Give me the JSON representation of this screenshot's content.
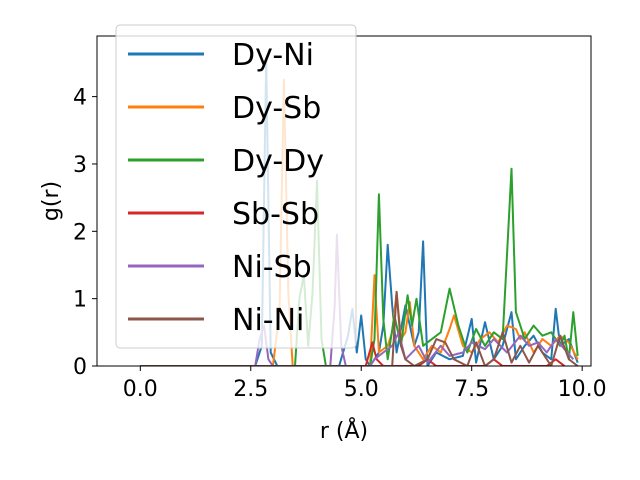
{
  "chart_data": {
    "type": "line",
    "title": "",
    "xlabel": "r (Å)",
    "ylabel": "g(r)",
    "xlim": [
      -0.98,
      10.2
    ],
    "ylim": [
      0,
      4.9
    ],
    "xticks": [
      0.0,
      2.5,
      5.0,
      7.5,
      10.0
    ],
    "xtick_labels": [
      "0.0",
      "2.5",
      "5.0",
      "7.5",
      "10.0"
    ],
    "yticks": [
      0,
      1,
      2,
      3,
      4
    ],
    "ytick_labels": [
      "0",
      "1",
      "2",
      "3",
      "4"
    ],
    "grid": false,
    "legend_position": "upper-left",
    "series": [
      {
        "name": "Dy-Ni",
        "color": "#1f77b4",
        "points": [
          [
            0,
            0
          ],
          [
            2.6,
            0
          ],
          [
            2.75,
            0.3
          ],
          [
            2.85,
            4.55
          ],
          [
            2.95,
            0.2
          ],
          [
            3.1,
            0
          ],
          [
            4.5,
            0
          ],
          [
            4.7,
            0.45
          ],
          [
            4.8,
            0.85
          ],
          [
            4.9,
            0.2
          ],
          [
            5.0,
            0.75
          ],
          [
            5.1,
            0.1
          ],
          [
            5.2,
            0
          ],
          [
            5.4,
            0.2
          ],
          [
            5.5,
            0.6
          ],
          [
            5.6,
            1.8
          ],
          [
            5.7,
            0.9
          ],
          [
            5.8,
            0.2
          ],
          [
            6.0,
            0.9
          ],
          [
            6.2,
            0.3
          ],
          [
            6.3,
            0.5
          ],
          [
            6.4,
            1.85
          ],
          [
            6.5,
            0
          ],
          [
            6.7,
            0.2
          ],
          [
            7.0,
            0.1
          ],
          [
            7.3,
            0.15
          ],
          [
            7.5,
            0.7
          ],
          [
            7.6,
            0.05
          ],
          [
            7.8,
            0.65
          ],
          [
            8.0,
            0.1
          ],
          [
            8.2,
            0.3
          ],
          [
            8.4,
            0.8
          ],
          [
            8.5,
            0.1
          ],
          [
            8.7,
            0.3
          ],
          [
            8.9,
            0.45
          ],
          [
            9.1,
            0.2
          ],
          [
            9.3,
            0.1
          ],
          [
            9.4,
            0.85
          ],
          [
            9.5,
            0.3
          ],
          [
            9.7,
            0.4
          ],
          [
            9.9,
            0.05
          ]
        ]
      },
      {
        "name": "Dy-Sb",
        "color": "#ff7f0e",
        "points": [
          [
            0,
            0
          ],
          [
            3.0,
            0
          ],
          [
            3.15,
            0.8
          ],
          [
            3.25,
            4.25
          ],
          [
            3.35,
            1.1
          ],
          [
            3.45,
            0
          ],
          [
            5.2,
            0
          ],
          [
            5.3,
            1.35
          ],
          [
            5.4,
            0.2
          ],
          [
            5.6,
            0.3
          ],
          [
            5.7,
            0.5
          ],
          [
            5.8,
            1.1
          ],
          [
            5.9,
            0.4
          ],
          [
            6.0,
            0.5
          ],
          [
            6.1,
            0.95
          ],
          [
            6.2,
            0.3
          ],
          [
            6.4,
            0.1
          ],
          [
            6.6,
            0.3
          ],
          [
            6.8,
            0.2
          ],
          [
            7.0,
            0.55
          ],
          [
            7.1,
            0.75
          ],
          [
            7.3,
            0.3
          ],
          [
            7.5,
            0.2
          ],
          [
            7.7,
            0.4
          ],
          [
            7.9,
            0.5
          ],
          [
            8.1,
            0.35
          ],
          [
            8.3,
            0.6
          ],
          [
            8.5,
            0.55
          ],
          [
            8.6,
            0.4
          ],
          [
            8.7,
            0.5
          ],
          [
            8.9,
            0.2
          ],
          [
            9.1,
            0.4
          ],
          [
            9.3,
            0.3
          ],
          [
            9.5,
            0.45
          ],
          [
            9.7,
            0.35
          ],
          [
            9.9,
            0.1
          ]
        ]
      },
      {
        "name": "Dy-Dy",
        "color": "#2ca02c",
        "points": [
          [
            0,
            0
          ],
          [
            3.5,
            0
          ],
          [
            3.6,
            1.0
          ],
          [
            3.7,
            1.35
          ],
          [
            3.8,
            0.3
          ],
          [
            3.9,
            1.1
          ],
          [
            4.0,
            2.75
          ],
          [
            4.1,
            0.4
          ],
          [
            4.2,
            0
          ],
          [
            5.2,
            0
          ],
          [
            5.3,
            0.4
          ],
          [
            5.4,
            2.55
          ],
          [
            5.5,
            0.7
          ],
          [
            5.6,
            0.1
          ],
          [
            5.75,
            0.75
          ],
          [
            5.9,
            0.3
          ],
          [
            6.05,
            1.05
          ],
          [
            6.15,
            0.6
          ],
          [
            6.25,
            1.0
          ],
          [
            6.4,
            0.3
          ],
          [
            6.6,
            0.4
          ],
          [
            6.8,
            0.5
          ],
          [
            7.0,
            1.15
          ],
          [
            7.2,
            0.6
          ],
          [
            7.4,
            0.2
          ],
          [
            7.6,
            0.55
          ],
          [
            7.8,
            0.3
          ],
          [
            8.0,
            0.5
          ],
          [
            8.2,
            0.4
          ],
          [
            8.4,
            2.93
          ],
          [
            8.5,
            0.8
          ],
          [
            8.7,
            0.4
          ],
          [
            8.9,
            0.6
          ],
          [
            9.1,
            0.45
          ],
          [
            9.3,
            0.5
          ],
          [
            9.5,
            0.3
          ],
          [
            9.6,
            0.45
          ],
          [
            9.7,
            0.1
          ],
          [
            9.8,
            0.8
          ],
          [
            9.9,
            0.15
          ]
        ]
      },
      {
        "name": "Sb-Sb",
        "color": "#d62728",
        "points": [
          [
            0,
            0
          ],
          [
            5.1,
            0
          ],
          [
            5.25,
            0.35
          ],
          [
            5.35,
            0.1
          ],
          [
            5.5,
            0
          ],
          [
            6.3,
            0
          ],
          [
            6.5,
            0.1
          ],
          [
            6.7,
            0
          ],
          [
            7.8,
            0
          ],
          [
            8.0,
            0.1
          ],
          [
            8.2,
            0
          ],
          [
            9.2,
            0
          ],
          [
            9.4,
            0.1
          ],
          [
            9.6,
            0
          ]
        ]
      },
      {
        "name": "Ni-Sb",
        "color": "#9467bd",
        "points": [
          [
            0,
            0
          ],
          [
            2.6,
            0
          ],
          [
            2.7,
            0.4
          ],
          [
            2.8,
            0.6
          ],
          [
            2.9,
            0.1
          ],
          [
            3.0,
            0
          ],
          [
            4.3,
            0
          ],
          [
            4.4,
            0.9
          ],
          [
            4.45,
            1.95
          ],
          [
            4.55,
            0.3
          ],
          [
            4.65,
            0
          ],
          [
            5.2,
            0
          ],
          [
            5.3,
            0.1
          ],
          [
            5.5,
            0.2
          ],
          [
            5.7,
            0.3
          ],
          [
            5.85,
            0.5
          ],
          [
            6.0,
            0.1
          ],
          [
            6.3,
            0.3
          ],
          [
            6.5,
            0.05
          ],
          [
            6.8,
            0.3
          ],
          [
            7.0,
            0.15
          ],
          [
            7.3,
            0.2
          ],
          [
            7.5,
            0.35
          ],
          [
            7.8,
            0.25
          ],
          [
            8.0,
            0.4
          ],
          [
            8.3,
            0.2
          ],
          [
            8.6,
            0.45
          ],
          [
            8.8,
            0.3
          ],
          [
            9.0,
            0.35
          ],
          [
            9.2,
            0.2
          ],
          [
            9.4,
            0.4
          ],
          [
            9.6,
            0.25
          ],
          [
            9.8,
            0.1
          ]
        ]
      },
      {
        "name": "Ni-Ni",
        "color": "#8c564b",
        "points": [
          [
            0,
            0
          ],
          [
            5.7,
            0
          ],
          [
            5.8,
            1.1
          ],
          [
            5.9,
            0.3
          ],
          [
            6.0,
            0.1
          ],
          [
            6.2,
            0
          ],
          [
            6.5,
            0.1
          ],
          [
            6.7,
            0.4
          ],
          [
            6.9,
            0.35
          ],
          [
            7.1,
            0.1
          ],
          [
            7.4,
            0
          ],
          [
            7.6,
            0.35
          ],
          [
            7.8,
            0
          ],
          [
            8.0,
            0.1
          ],
          [
            8.2,
            0.5
          ],
          [
            8.4,
            0.05
          ],
          [
            8.6,
            0.3
          ],
          [
            8.8,
            0.05
          ],
          [
            9.0,
            0.3
          ],
          [
            9.3,
            0
          ],
          [
            9.5,
            0.45
          ],
          [
            9.7,
            0.1
          ],
          [
            9.9,
            0
          ]
        ]
      }
    ]
  }
}
